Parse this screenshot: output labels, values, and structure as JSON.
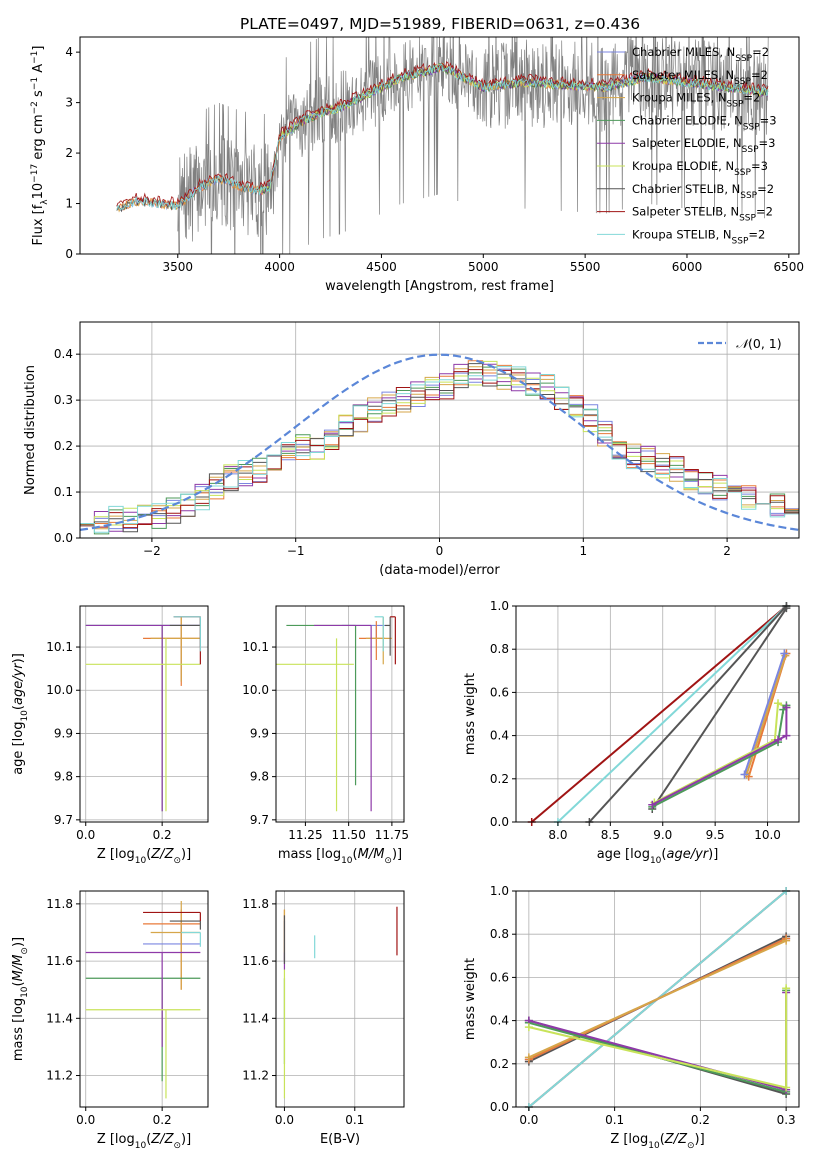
{
  "figure": {
    "title": "PLATE=0497, MJD=51989, FIBERID=0631, z=0.436"
  },
  "colors": {
    "chabrier_miles": "#7b86e0",
    "salpeter_miles": "#e87a3a",
    "kroupa_miles": "#d6a64a",
    "chabrier_elodie": "#4d9a5a",
    "salpeter_elodie": "#8e3aa8",
    "kroupa_elodie": "#c8e35a",
    "chabrier_stelib": "#555555",
    "salpeter_stelib": "#a01414",
    "kroupa_stelib": "#82d8d8",
    "spectrum_data": "#808080",
    "normal_curve": "#5b87d8",
    "grid": "#b0b0b0"
  },
  "chart_data": [
    {
      "id": "spectrum",
      "type": "line",
      "xlabel": "wavelength [Angstrom, rest frame]",
      "ylabel": "Flux [f_λ 10^-17 erg cm^-2 s^-1 A^-1]",
      "xlim": [
        3020,
        6550
      ],
      "ylim": [
        0,
        4.3
      ],
      "xticks": [
        3500,
        4000,
        4500,
        5000,
        5500,
        6000,
        6500
      ],
      "yticks": [
        0,
        1,
        2,
        3,
        4
      ],
      "grid": false,
      "legend_position": "top-right",
      "legend": [
        {
          "key": "chabrier_miles",
          "label": "Chabrier MILES, N",
          "sub": "SSP",
          "suffix": "=2"
        },
        {
          "key": "salpeter_miles",
          "label": "Salpeter MILES, N",
          "sub": "SSP",
          "suffix": "=2"
        },
        {
          "key": "kroupa_miles",
          "label": "Kroupa MILES, N",
          "sub": "SSP",
          "suffix": "=2"
        },
        {
          "key": "chabrier_elodie",
          "label": "Chabrier ELODIE, N",
          "sub": "SSP",
          "suffix": "=3"
        },
        {
          "key": "salpeter_elodie",
          "label": "Salpeter ELODIE, N",
          "sub": "SSP",
          "suffix": "=3"
        },
        {
          "key": "kroupa_elodie",
          "label": "Kroupa ELODIE, N",
          "sub": "SSP",
          "suffix": "=3"
        },
        {
          "key": "chabrier_stelib",
          "label": "Chabrier STELIB, N",
          "sub": "SSP",
          "suffix": "=2"
        },
        {
          "key": "salpeter_stelib",
          "label": "Salpeter STELIB, N",
          "sub": "SSP",
          "suffix": "=2"
        },
        {
          "key": "kroupa_stelib",
          "label": "Kroupa STELIB, N",
          "sub": "SSP",
          "suffix": "=2"
        }
      ],
      "model_continuum": {
        "x": [
          3200,
          3300,
          3400,
          3500,
          3600,
          3700,
          3800,
          3900,
          3950,
          4000,
          4100,
          4200,
          4300,
          4400,
          4500,
          4600,
          4700,
          4800,
          4900,
          5000,
          5200,
          5400,
          5600,
          5800,
          6000,
          6200,
          6400
        ],
        "y": [
          0.9,
          1.05,
          1.0,
          0.95,
          1.3,
          1.5,
          1.35,
          1.25,
          1.3,
          2.3,
          2.6,
          2.8,
          2.9,
          3.1,
          3.3,
          3.5,
          3.6,
          3.7,
          3.5,
          3.3,
          3.4,
          3.35,
          3.3,
          3.5,
          3.4,
          3.3,
          3.2
        ]
      }
    },
    {
      "id": "residuals",
      "type": "step-histogram",
      "xlabel": "(data-model)/error",
      "ylabel": "Normed distribution",
      "xlim": [
        -2.5,
        2.5
      ],
      "ylim": [
        0,
        0.47
      ],
      "xticks": [
        -2,
        -1,
        0,
        1,
        2
      ],
      "yticks": [
        0.0,
        0.1,
        0.2,
        0.3,
        0.4
      ],
      "grid": true,
      "legend_position": "top-right",
      "legend_label": "N(0,1)",
      "bins": {
        "start": -2.5,
        "width": 0.1,
        "count": 50
      },
      "base_density": [
        0.03,
        0.035,
        0.04,
        0.04,
        0.045,
        0.05,
        0.06,
        0.07,
        0.09,
        0.11,
        0.13,
        0.14,
        0.15,
        0.16,
        0.19,
        0.2,
        0.2,
        0.21,
        0.24,
        0.26,
        0.28,
        0.29,
        0.3,
        0.31,
        0.32,
        0.33,
        0.35,
        0.36,
        0.36,
        0.35,
        0.35,
        0.34,
        0.33,
        0.3,
        0.28,
        0.26,
        0.23,
        0.2,
        0.18,
        0.17,
        0.16,
        0.15,
        0.13,
        0.12,
        0.11,
        0.1,
        0.09,
        0.08,
        0.07,
        0.06
      ]
    },
    {
      "id": "age_vs_z",
      "type": "scatter-errorbar",
      "xlabel": "Z [log10(Z/Z⊙)]",
      "ylabel": "age [log10(age/yr)]",
      "xlim": [
        -0.015,
        0.32
      ],
      "ylim": [
        9.695,
        10.195
      ],
      "xticks": [
        0.0,
        0.2
      ],
      "yticks": [
        9.7,
        9.8,
        9.9,
        10.0,
        10.1
      ],
      "grid": true,
      "points": [
        {
          "key": "chabrier_miles",
          "x": 0.25,
          "y": 10.15,
          "xerr": [
            0.25,
            0.05
          ],
          "yerr": [
            0.13,
            0.0
          ]
        },
        {
          "key": "salpeter_miles",
          "x": 0.25,
          "y": 10.12,
          "xerr": [
            0.1,
            0.05
          ],
          "yerr": [
            0.11,
            0.05
          ]
        },
        {
          "key": "kroupa_miles",
          "x": 0.25,
          "y": 10.12,
          "xerr": [
            0.08,
            0.05
          ],
          "yerr": [
            0.1,
            0.05
          ]
        },
        {
          "key": "chabrier_elodie",
          "x": 0.2,
          "y": 10.15,
          "xerr": [
            0.2,
            0.1
          ],
          "yerr": [
            0.43,
            0.0
          ]
        },
        {
          "key": "salpeter_elodie",
          "x": 0.2,
          "y": 10.15,
          "xerr": [
            0.2,
            0.1
          ],
          "yerr": [
            0.43,
            0.0
          ]
        },
        {
          "key": "kroupa_elodie",
          "x": 0.21,
          "y": 10.06,
          "xerr": [
            0.21,
            0.09
          ],
          "yerr": [
            0.34,
            0.06
          ]
        },
        {
          "key": "chabrier_stelib",
          "x": 0.3,
          "y": 10.15,
          "xerr": [
            0.08,
            0.0
          ],
          "yerr": [
            0.05,
            0.02
          ]
        },
        {
          "key": "salpeter_stelib",
          "x": 0.3,
          "y": 10.17,
          "xerr": [
            0.07,
            0.0
          ],
          "yerr": [
            0.11,
            0.0
          ]
        },
        {
          "key": "kroupa_stelib",
          "x": 0.3,
          "y": 10.17,
          "xerr": [
            0.07,
            0.0
          ],
          "yerr": [
            0.08,
            0.0
          ]
        }
      ]
    },
    {
      "id": "age_vs_mass",
      "type": "scatter-errorbar",
      "xlabel": "mass [log10(M/M⊙)]",
      "ylabel": "",
      "xlim": [
        11.08,
        11.82
      ],
      "ylim": [
        9.695,
        10.195
      ],
      "xticks": [
        11.25,
        11.5,
        11.75
      ],
      "yticks": [
        9.7,
        9.8,
        9.9,
        10.0,
        10.1
      ],
      "grid": true,
      "points": [
        {
          "key": "chabrier_miles",
          "x": 11.66,
          "y": 10.15,
          "xerr": [
            0.2,
            0.05
          ],
          "yerr": [
            0.03,
            0.0
          ]
        },
        {
          "key": "salpeter_miles",
          "x": 11.66,
          "y": 10.12,
          "xerr": [
            0.1,
            0.05
          ],
          "yerr": [
            0.05,
            0.04
          ]
        },
        {
          "key": "kroupa_miles",
          "x": 11.7,
          "y": 10.12,
          "xerr": [
            0.1,
            0.05
          ],
          "yerr": [
            0.06,
            0.05
          ]
        },
        {
          "key": "chabrier_elodie",
          "x": 11.54,
          "y": 10.15,
          "xerr": [
            0.4,
            0.0
          ],
          "yerr": [
            0.37,
            0.0
          ]
        },
        {
          "key": "salpeter_elodie",
          "x": 11.63,
          "y": 10.15,
          "xerr": [
            0.33,
            0.0
          ],
          "yerr": [
            0.43,
            0.0
          ]
        },
        {
          "key": "kroupa_elodie",
          "x": 11.43,
          "y": 10.06,
          "xerr": [
            0.35,
            0.1
          ],
          "yerr": [
            0.34,
            0.06
          ]
        },
        {
          "key": "chabrier_stelib",
          "x": 11.74,
          "y": 10.15,
          "xerr": [
            0.03,
            0.0
          ],
          "yerr": [
            0.07,
            0.02
          ]
        },
        {
          "key": "salpeter_stelib",
          "x": 11.77,
          "y": 10.17,
          "xerr": [
            0.03,
            0.0
          ],
          "yerr": [
            0.11,
            0.0
          ]
        },
        {
          "key": "kroupa_stelib",
          "x": 11.7,
          "y": 10.17,
          "xerr": [
            0.05,
            0.0
          ],
          "yerr": [
            0.08,
            0.0
          ]
        }
      ]
    },
    {
      "id": "weight_vs_age",
      "type": "line",
      "xlabel": "age [log10(age/yr)]",
      "ylabel": "mass weight",
      "xlim": [
        7.6,
        10.3
      ],
      "ylim": [
        0.0,
        1.0
      ],
      "xticks": [
        8.0,
        8.5,
        9.0,
        9.5,
        10.0
      ],
      "yticks": [
        0.0,
        0.2,
        0.4,
        0.6,
        0.8,
        1.0
      ],
      "grid": true,
      "series": [
        {
          "key": "salpeter_stelib",
          "x": [
            7.75,
            10.18
          ],
          "y": [
            0.0,
            1.0
          ]
        },
        {
          "key": "kroupa_stelib",
          "x": [
            8.0,
            10.18
          ],
          "y": [
            0.0,
            1.0
          ]
        },
        {
          "key": "chabrier_stelib",
          "x": [
            8.3,
            10.18
          ],
          "y": [
            0.0,
            1.0
          ]
        },
        {
          "key": "chabrier_stelib",
          "x": [
            8.9,
            10.18
          ],
          "y": [
            0.06,
            0.99
          ]
        },
        {
          "key": "salpeter_miles",
          "x": [
            9.82,
            10.18
          ],
          "y": [
            0.21,
            0.78
          ]
        },
        {
          "key": "kroupa_miles",
          "x": [
            9.8,
            10.17
          ],
          "y": [
            0.22,
            0.77
          ]
        },
        {
          "key": "chabrier_miles",
          "x": [
            9.78,
            10.16
          ],
          "y": [
            0.22,
            0.78
          ]
        },
        {
          "key": "kroupa_elodie",
          "x": [
            8.92,
            10.07,
            10.1,
            10.18
          ],
          "y": [
            0.09,
            0.38,
            0.55,
            0.53
          ]
        },
        {
          "key": "chabrier_elodie",
          "x": [
            8.9,
            10.1,
            10.15,
            10.18
          ],
          "y": [
            0.07,
            0.37,
            0.52,
            0.54
          ]
        },
        {
          "key": "salpeter_elodie",
          "x": [
            8.9,
            10.1,
            10.18,
            10.18
          ],
          "y": [
            0.08,
            0.38,
            0.4,
            0.53
          ]
        }
      ]
    },
    {
      "id": "mass_vs_z",
      "type": "scatter-errorbar",
      "xlabel": "Z [log10(Z/Z⊙)]",
      "ylabel": "mass [log10(M/M⊙)]",
      "xlim": [
        -0.015,
        0.32
      ],
      "ylim": [
        11.09,
        11.845
      ],
      "xticks": [
        0.0,
        0.2
      ],
      "yticks": [
        11.2,
        11.4,
        11.6,
        11.8
      ],
      "grid": true,
      "points": [
        {
          "key": "chabrier_miles",
          "x": 0.25,
          "y": 11.66,
          "xerr": [
            0.1,
            0.05
          ],
          "yerr": [
            0.0,
            0.08
          ]
        },
        {
          "key": "salpeter_miles",
          "x": 0.25,
          "y": 11.73,
          "xerr": [
            0.1,
            0.05
          ],
          "yerr": [
            0.23,
            0.05
          ]
        },
        {
          "key": "kroupa_miles",
          "x": 0.25,
          "y": 11.7,
          "xerr": [
            0.08,
            0.05
          ],
          "yerr": [
            0.2,
            0.11
          ]
        },
        {
          "key": "chabrier_elodie",
          "x": 0.2,
          "y": 11.54,
          "xerr": [
            0.2,
            0.1
          ],
          "yerr": [
            0.36,
            0.0
          ]
        },
        {
          "key": "salpeter_elodie",
          "x": 0.2,
          "y": 11.63,
          "xerr": [
            0.2,
            0.1
          ],
          "yerr": [
            0.33,
            0.0
          ]
        },
        {
          "key": "kroupa_elodie",
          "x": 0.21,
          "y": 11.43,
          "xerr": [
            0.21,
            0.09
          ],
          "yerr": [
            0.31,
            0.0
          ]
        },
        {
          "key": "chabrier_stelib",
          "x": 0.3,
          "y": 11.74,
          "xerr": [
            0.08,
            0.0
          ],
          "yerr": [
            0.03,
            0.0
          ]
        },
        {
          "key": "salpeter_stelib",
          "x": 0.3,
          "y": 11.77,
          "xerr": [
            0.15,
            0.0
          ],
          "yerr": [
            0.03,
            0.0
          ]
        },
        {
          "key": "kroupa_stelib",
          "x": 0.3,
          "y": 11.7,
          "xerr": [
            0.05,
            0.0
          ],
          "yerr": [
            0.05,
            0.0
          ]
        }
      ]
    },
    {
      "id": "mass_vs_ebv",
      "type": "scatter-errorbar",
      "xlabel": "E(B-V)",
      "ylabel": "",
      "xlim": [
        -0.012,
        0.17
      ],
      "ylim": [
        11.09,
        11.845
      ],
      "xticks": [
        0.0,
        0.1
      ],
      "yticks": [
        11.2,
        11.4,
        11.6,
        11.8
      ],
      "grid": true,
      "points": [
        {
          "key": "chabrier_miles",
          "x": 0.0,
          "y": 11.66,
          "xerr": [
            0.0,
            0.0
          ],
          "yerr": [
            0.06,
            0.08
          ]
        },
        {
          "key": "salpeter_miles",
          "x": 0.0,
          "y": 11.73,
          "xerr": [
            0.0,
            0.0
          ],
          "yerr": [
            0.1,
            0.05
          ]
        },
        {
          "key": "kroupa_miles",
          "x": 0.0,
          "y": 11.7,
          "xerr": [
            0.0,
            0.0
          ],
          "yerr": [
            0.1,
            0.08
          ]
        },
        {
          "key": "chabrier_elodie",
          "x": 0.0,
          "y": 11.54,
          "xerr": [
            0.0,
            0.0
          ],
          "yerr": [
            0.3,
            0.0
          ]
        },
        {
          "key": "salpeter_elodie",
          "x": 0.0,
          "y": 11.63,
          "xerr": [
            0.0,
            0.0
          ],
          "yerr": [
            0.06,
            0.0
          ]
        },
        {
          "key": "kroupa_elodie",
          "x": 0.0,
          "y": 11.43,
          "xerr": [
            0.0,
            0.0
          ],
          "yerr": [
            0.31,
            0.14
          ]
        },
        {
          "key": "chabrier_stelib",
          "x": 0.0,
          "y": 11.74,
          "xerr": [
            0.0,
            0.0
          ],
          "yerr": [
            0.15,
            0.02
          ]
        },
        {
          "key": "salpeter_stelib",
          "x": 0.16,
          "y": 11.71,
          "xerr": [
            0.0,
            0.0
          ],
          "yerr": [
            0.09,
            0.08
          ]
        },
        {
          "key": "kroupa_stelib",
          "x": 0.043,
          "y": 11.65,
          "xerr": [
            0.0,
            0.0
          ],
          "yerr": [
            0.04,
            0.04
          ]
        }
      ]
    },
    {
      "id": "weight_vs_z",
      "type": "line",
      "xlabel": "Z [log10(Z/Z⊙)]",
      "ylabel": "mass weight",
      "xlim": [
        -0.015,
        0.315
      ],
      "ylim": [
        0.0,
        1.0
      ],
      "xticks": [
        0.0,
        0.1,
        0.2,
        0.3
      ],
      "yticks": [
        0.0,
        0.2,
        0.4,
        0.6,
        0.8,
        1.0
      ],
      "grid": true,
      "series": [
        {
          "key": "salpeter_stelib",
          "x": [
            0.0,
            0.3
          ],
          "y": [
            0.0,
            1.0
          ]
        },
        {
          "key": "kroupa_stelib",
          "x": [
            0.0,
            0.3
          ],
          "y": [
            0.0,
            1.0
          ]
        },
        {
          "key": "chabrier_stelib",
          "x": [
            0.0,
            0.3
          ],
          "y": [
            0.21,
            0.79
          ]
        },
        {
          "key": "chabrier_miles",
          "x": [
            0.0,
            0.3
          ],
          "y": [
            0.22,
            0.78
          ]
        },
        {
          "key": "salpeter_miles",
          "x": [
            0.0,
            0.3
          ],
          "y": [
            0.22,
            0.78
          ]
        },
        {
          "key": "kroupa_miles",
          "x": [
            0.0,
            0.3
          ],
          "y": [
            0.23,
            0.77
          ]
        },
        {
          "key": "chabrier_stelib",
          "x": [
            0.0,
            0.3
          ],
          "y": [
            0.4,
            0.06
          ]
        },
        {
          "key": "chabrier_elodie",
          "x": [
            0.0,
            0.3,
            0.3
          ],
          "y": [
            0.39,
            0.07,
            0.54
          ]
        },
        {
          "key": "salpeter_elodie",
          "x": [
            0.0,
            0.3,
            0.3
          ],
          "y": [
            0.4,
            0.08,
            0.53
          ]
        },
        {
          "key": "kroupa_elodie",
          "x": [
            0.0,
            0.3,
            0.3
          ],
          "y": [
            0.37,
            0.09,
            0.55
          ]
        }
      ]
    }
  ]
}
